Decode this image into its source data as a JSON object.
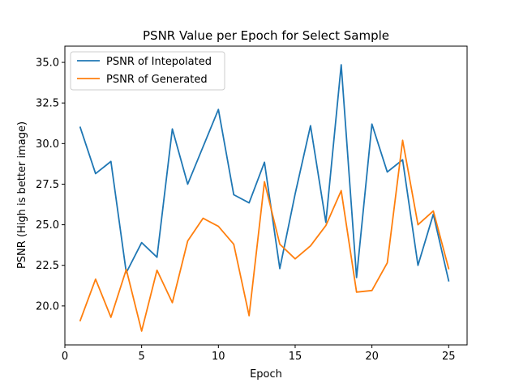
{
  "chart_data": {
    "type": "line",
    "title": "PSNR Value per Epoch for Select Sample",
    "xlabel": "Epoch",
    "ylabel": "PSNR (High is better image)",
    "xlim": [
      0,
      26.2
    ],
    "ylim": [
      17.6,
      36.0
    ],
    "xticks": [
      0,
      5,
      10,
      15,
      20,
      25
    ],
    "xtick_labels": [
      "0",
      "5",
      "10",
      "15",
      "20",
      "25"
    ],
    "yticks": [
      20.0,
      22.5,
      25.0,
      27.5,
      30.0,
      32.5,
      35.0
    ],
    "ytick_labels": [
      "20.0",
      "22.5",
      "25.0",
      "27.5",
      "30.0",
      "32.5",
      "35.0"
    ],
    "grid": false,
    "legend_position": "top-left",
    "x": [
      1,
      2,
      3,
      4,
      5,
      6,
      7,
      8,
      9,
      10,
      11,
      12,
      13,
      14,
      15,
      16,
      17,
      18,
      19,
      20,
      21,
      22,
      23,
      24,
      25
    ],
    "series": [
      {
        "name": "PSNR of Intepolated",
        "color": "#1f77b4",
        "values": [
          31.0,
          28.15,
          28.9,
          22.05,
          23.9,
          23.0,
          30.9,
          27.5,
          29.8,
          32.1,
          26.85,
          26.35,
          28.85,
          22.3,
          26.9,
          31.1,
          25.15,
          34.85,
          21.75,
          31.2,
          28.25,
          29.0,
          22.5,
          25.65,
          21.55
        ]
      },
      {
        "name": "PSNR of Generated",
        "color": "#ff7f0e",
        "values": [
          19.1,
          21.65,
          19.3,
          22.25,
          18.45,
          22.2,
          20.2,
          24.0,
          25.4,
          24.9,
          23.8,
          19.4,
          27.65,
          23.8,
          22.9,
          23.7,
          24.95,
          27.1,
          20.85,
          20.95,
          22.65,
          30.2,
          25.0,
          25.85,
          22.3
        ]
      }
    ]
  }
}
